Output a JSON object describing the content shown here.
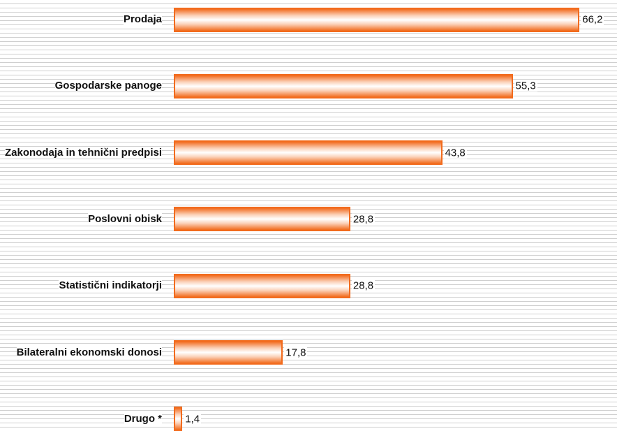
{
  "chart_data": {
    "type": "hbar",
    "categories": [
      "Prodaja",
      "Gospodarske panoge",
      "Zakonodaja in tehnični predpisi",
      "Poslovni obisk",
      "Statistični indikatorji",
      "Bilateralni ekonomski donosi",
      "Drugo *"
    ],
    "values": [
      66.2,
      55.3,
      43.8,
      28.8,
      28.8,
      17.8,
      1.4
    ],
    "value_labels": [
      "66,2",
      "55,3",
      "43,8",
      "28,8",
      "28,8",
      "17,8",
      "1,4"
    ],
    "color": "#f26b1d"
  }
}
